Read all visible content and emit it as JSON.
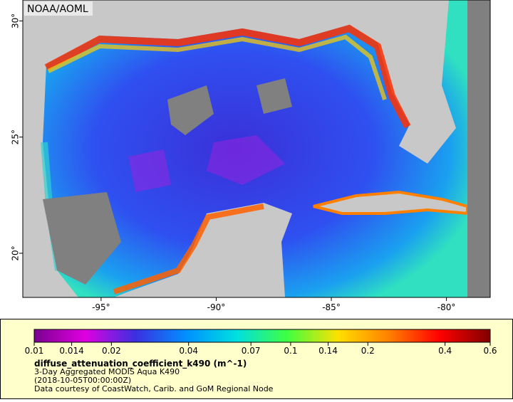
{
  "map": {
    "credit": "NOAA/AOML",
    "xlim": [
      -98.4,
      -78.1
    ],
    "ylim": [
      18.1,
      30.9
    ],
    "xticks": [
      {
        "value": -95,
        "label": "-95°"
      },
      {
        "value": -90,
        "label": "-90°"
      },
      {
        "value": -85,
        "label": "-85°"
      },
      {
        "value": -80,
        "label": "-80°"
      }
    ],
    "yticks": [
      {
        "value": 20,
        "label": "20°"
      },
      {
        "value": 25,
        "label": "25°"
      },
      {
        "value": 30,
        "label": "30°"
      }
    ]
  },
  "colorbar": {
    "log": true,
    "lim": [
      0.01,
      0.6
    ],
    "ticks": [
      0.01,
      0.014,
      0.02,
      0.04,
      0.07,
      0.1,
      0.14,
      0.2,
      0.4,
      0.6
    ],
    "colors": [
      "#7a0090",
      "#e000e0",
      "#3a30e0",
      "#0090ff",
      "#00e0e0",
      "#40ff40",
      "#ffe000",
      "#ff8000",
      "#ff0000",
      "#800000"
    ]
  },
  "legend": {
    "variable": "diffuse_attenuation_coefficient_k490 (m^-1)",
    "product": "3-Day Aggregated MODIS Aqua K490",
    "time": "(2018-10-05T00:00:00Z)",
    "source": "Data courtesy of CoastWatch, Carib. and GoM Regional Node"
  }
}
